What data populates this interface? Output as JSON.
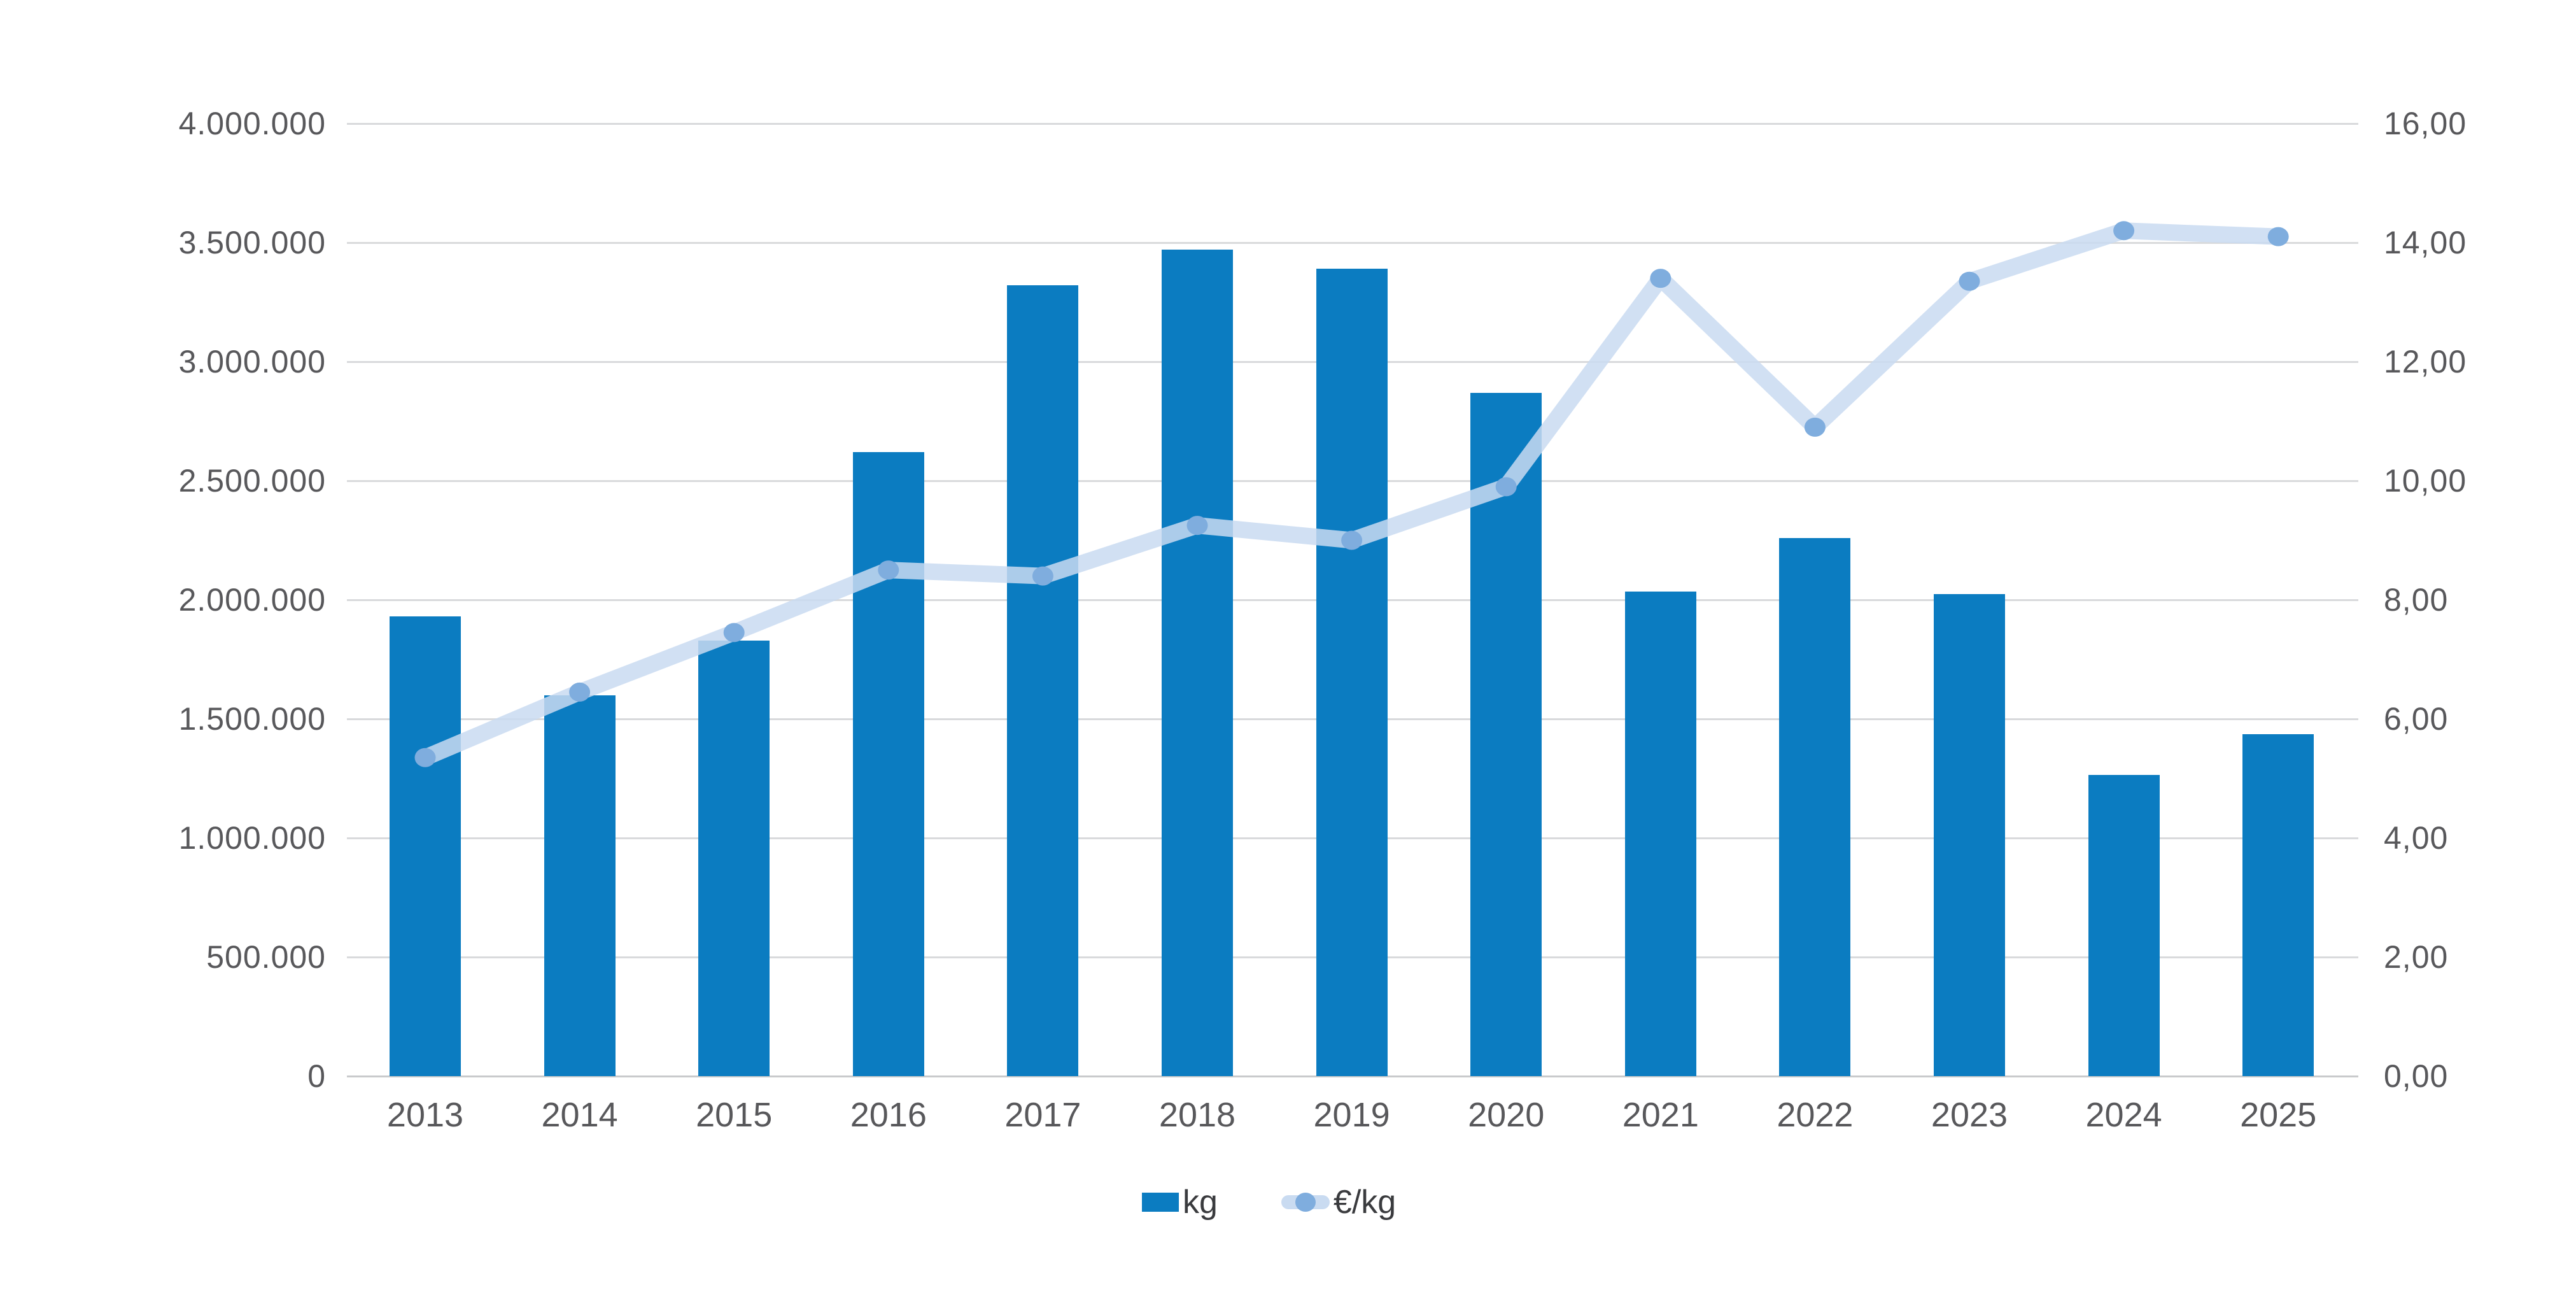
{
  "chart_data": {
    "type": "bar+line combo",
    "title": "",
    "categories": [
      "2013",
      "2014",
      "2015",
      "2016",
      "2017",
      "2018",
      "2019",
      "2020",
      "2021",
      "2022",
      "2023",
      "2024",
      "2025"
    ],
    "series": [
      {
        "name": "kg",
        "type": "bar",
        "axis": "left",
        "values": [
          1930000,
          1600000,
          1830000,
          2620000,
          3320000,
          3470000,
          3390000,
          2870000,
          2035000,
          2260000,
          2025000,
          1265000,
          1435000
        ]
      },
      {
        "name": "€/kg",
        "type": "line",
        "axis": "right",
        "values": [
          5.35,
          6.45,
          7.45,
          8.5,
          8.4,
          9.25,
          9.0,
          9.9,
          13.4,
          10.9,
          13.35,
          14.2,
          14.1
        ]
      }
    ],
    "left_axis": {
      "min": 0,
      "max": 4000000,
      "tick_step": 500000,
      "tick_labels_top_to_bottom": [
        "4.000.000",
        "3.500.000",
        "3.000.000",
        "2.500.000",
        "2.000.000",
        "1.500.000",
        "1.000.000",
        "500.000",
        "0"
      ]
    },
    "right_axis": {
      "min": 0,
      "max": 16,
      "tick_step": 2,
      "tick_labels_top_to_bottom": [
        "16,00",
        "14,00",
        "12,00",
        "10,00",
        "8,00",
        "6,00",
        "4,00",
        "2,00",
        "0,00"
      ]
    },
    "grid": "horizontal",
    "legend_position": "bottom-center",
    "legend": [
      {
        "label": "kg",
        "swatch": "bar-swatch"
      },
      {
        "label": "€/kg",
        "swatch": "line-marker-swatch"
      }
    ],
    "colors": {
      "bar": "#0b7cc1",
      "line": "#c9dbf1",
      "line_opacity": 0.85,
      "marker": "#7fadde",
      "gridline": "#d9dadc",
      "axis_text": "#58585b",
      "legend_text": "#3a3b3e",
      "background": "#ffffff"
    }
  }
}
